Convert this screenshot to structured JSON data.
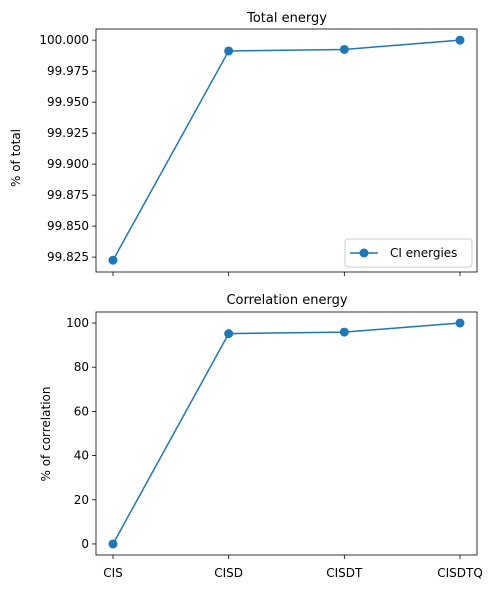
{
  "chart_data": [
    {
      "type": "line",
      "title": "Total energy",
      "xlabel": "",
      "ylabel": "% of total",
      "categories": [
        "CIS",
        "CISD",
        "CISDT",
        "CISDTQ"
      ],
      "series": [
        {
          "name": "CI energies",
          "values": [
            99.8225,
            99.9913,
            99.9925,
            100.0
          ],
          "color": "#1f77b4"
        }
      ],
      "ylim": [
        99.813,
        100.009
      ],
      "yticks": [
        99.825,
        99.85,
        99.875,
        99.9,
        99.925,
        99.95,
        99.975,
        100.0
      ],
      "ytick_labels": [
        "99.825",
        "99.850",
        "99.875",
        "99.900",
        "99.925",
        "99.950",
        "99.975",
        "100.000"
      ],
      "x_tick_labels_visible": false,
      "legend": {
        "position": "lower-right",
        "entries": [
          "CI energies"
        ]
      },
      "grid": false
    },
    {
      "type": "line",
      "title": "Correlation energy",
      "xlabel": "",
      "ylabel": "% of correlation",
      "categories": [
        "CIS",
        "CISD",
        "CISDT",
        "CISDTQ"
      ],
      "series": [
        {
          "values": [
            0.0,
            95.2,
            95.9,
            100.0
          ],
          "color": "#1f77b4"
        }
      ],
      "ylim": [
        -5,
        105
      ],
      "yticks": [
        0,
        20,
        40,
        60,
        80,
        100
      ],
      "ytick_labels": [
        "0",
        "20",
        "40",
        "60",
        "80",
        "100"
      ],
      "x_tick_labels_visible": true,
      "grid": false
    }
  ]
}
